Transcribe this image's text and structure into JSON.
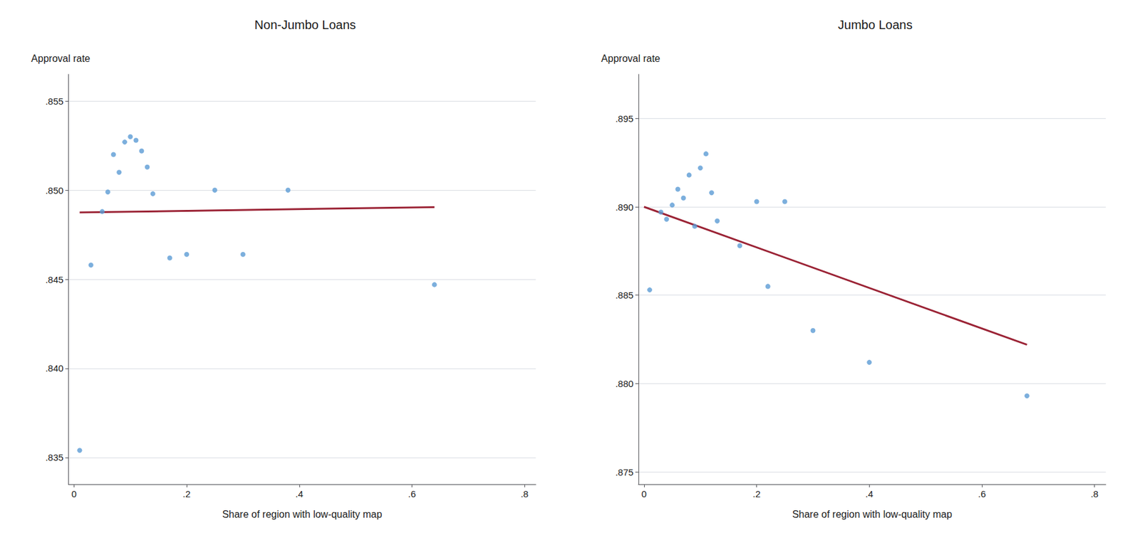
{
  "chart_data": [
    {
      "type": "scatter",
      "title": "Non-Jumbo Loans",
      "xlabel": "Share of region with low-quality map",
      "ylabel": "Approval rate",
      "xlim": [
        -0.01,
        0.82
      ],
      "xticks": [
        0,
        {
          "value": 0.2,
          "label": ".2"
        },
        {
          "value": 0.4,
          "label": ".4"
        },
        {
          "value": 0.6,
          "label": ".6"
        },
        {
          "value": 0.8,
          "label": ".8"
        }
      ],
      "ylim": [
        0.8335,
        0.8565
      ],
      "yticks": [
        {
          "value": 0.835,
          "label": ".835"
        },
        {
          "value": 0.84,
          "label": ".840"
        },
        {
          "value": 0.845,
          "label": ".845"
        },
        {
          "value": 0.85,
          "label": ".850"
        },
        {
          "value": 0.855,
          "label": ".855"
        }
      ],
      "grid": true,
      "series": [
        {
          "type": "scatter",
          "color": "#5B9BD5",
          "x": [
            0.01,
            0.03,
            0.05,
            0.06,
            0.07,
            0.08,
            0.09,
            0.1,
            0.11,
            0.12,
            0.13,
            0.14,
            0.17,
            0.2,
            0.25,
            0.3,
            0.38,
            0.64
          ],
          "values": [
            0.8354,
            0.8458,
            0.8488,
            0.8499,
            0.852,
            0.851,
            0.8527,
            0.853,
            0.8528,
            0.8522,
            0.8513,
            0.8498,
            0.8462,
            0.8464,
            0.85,
            0.8464,
            0.85,
            0.8447
          ]
        },
        {
          "type": "line",
          "color": "#9B2335",
          "x": [
            0.01,
            0.64
          ],
          "values": [
            0.84875,
            0.84905
          ]
        }
      ]
    },
    {
      "type": "scatter",
      "title": "Jumbo Loans",
      "xlabel": "Share of region with low-quality map",
      "ylabel": "Approval rate",
      "xlim": [
        -0.01,
        0.82
      ],
      "xticks": [
        0,
        {
          "value": 0.2,
          "label": ".2"
        },
        {
          "value": 0.4,
          "label": ".4"
        },
        {
          "value": 0.6,
          "label": ".6"
        },
        {
          "value": 0.8,
          "label": ".8"
        }
      ],
      "ylim": [
        0.8743,
        0.8975
      ],
      "yticks": [
        {
          "value": 0.875,
          "label": ".875"
        },
        {
          "value": 0.88,
          "label": ".880"
        },
        {
          "value": 0.885,
          "label": ".885"
        },
        {
          "value": 0.89,
          "label": ".890"
        },
        {
          "value": 0.895,
          "label": ".895"
        }
      ],
      "grid": true,
      "series": [
        {
          "type": "scatter",
          "color": "#5B9BD5",
          "x": [
            0.01,
            0.03,
            0.04,
            0.05,
            0.06,
            0.07,
            0.08,
            0.09,
            0.1,
            0.11,
            0.12,
            0.13,
            0.17,
            0.2,
            0.22,
            0.25,
            0.3,
            0.4,
            0.68
          ],
          "values": [
            0.8853,
            0.8897,
            0.8893,
            0.8901,
            0.891,
            0.8905,
            0.8918,
            0.8889,
            0.8922,
            0.893,
            0.8908,
            0.8892,
            0.8878,
            0.8903,
            0.8855,
            0.8903,
            0.883,
            0.8812,
            0.8793
          ]
        },
        {
          "type": "line",
          "color": "#9B2335",
          "x": [
            0.0,
            0.68
          ],
          "values": [
            0.89,
            0.8822
          ]
        }
      ]
    }
  ]
}
